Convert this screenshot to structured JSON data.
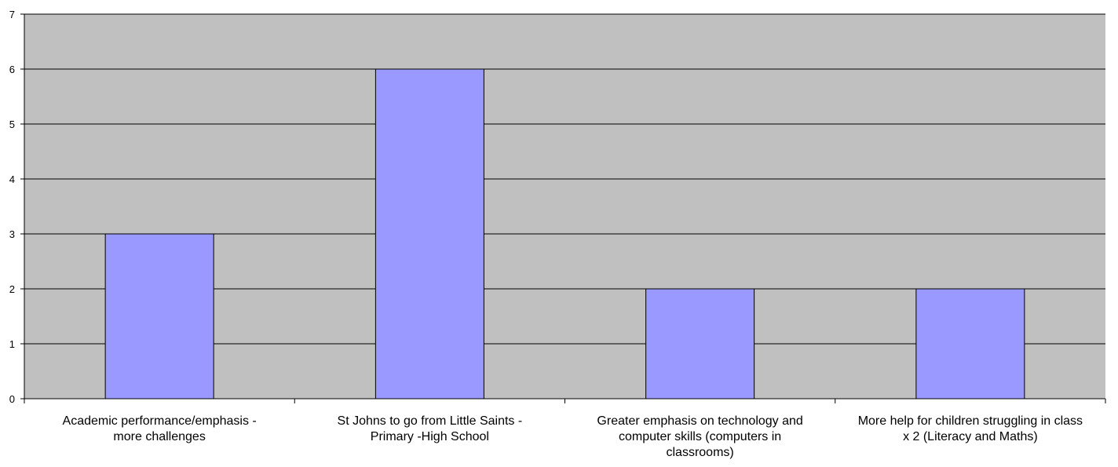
{
  "chart_data": {
    "type": "bar",
    "categories": [
      "Academic performance/emphasis  -\nmore challenges",
      "St Johns to go from Little Saints -\nPrimary -High School",
      "Greater emphasis on technology and\ncomputer skills (computers in\nclassrooms)",
      "More help for children struggling in class\nx 2 (Literacy and Maths)"
    ],
    "values": [
      3,
      6,
      2,
      2
    ],
    "ylim": [
      0,
      7
    ],
    "yticks": [
      "0",
      "1",
      "2",
      "3",
      "4",
      "5",
      "6",
      "7"
    ],
    "grid": true,
    "legend": "none",
    "colors": {
      "plot_background": "#c0c0c0",
      "bar_fill": "#9999ff",
      "bar_stroke": "#000000",
      "gridline": "#000000"
    }
  }
}
